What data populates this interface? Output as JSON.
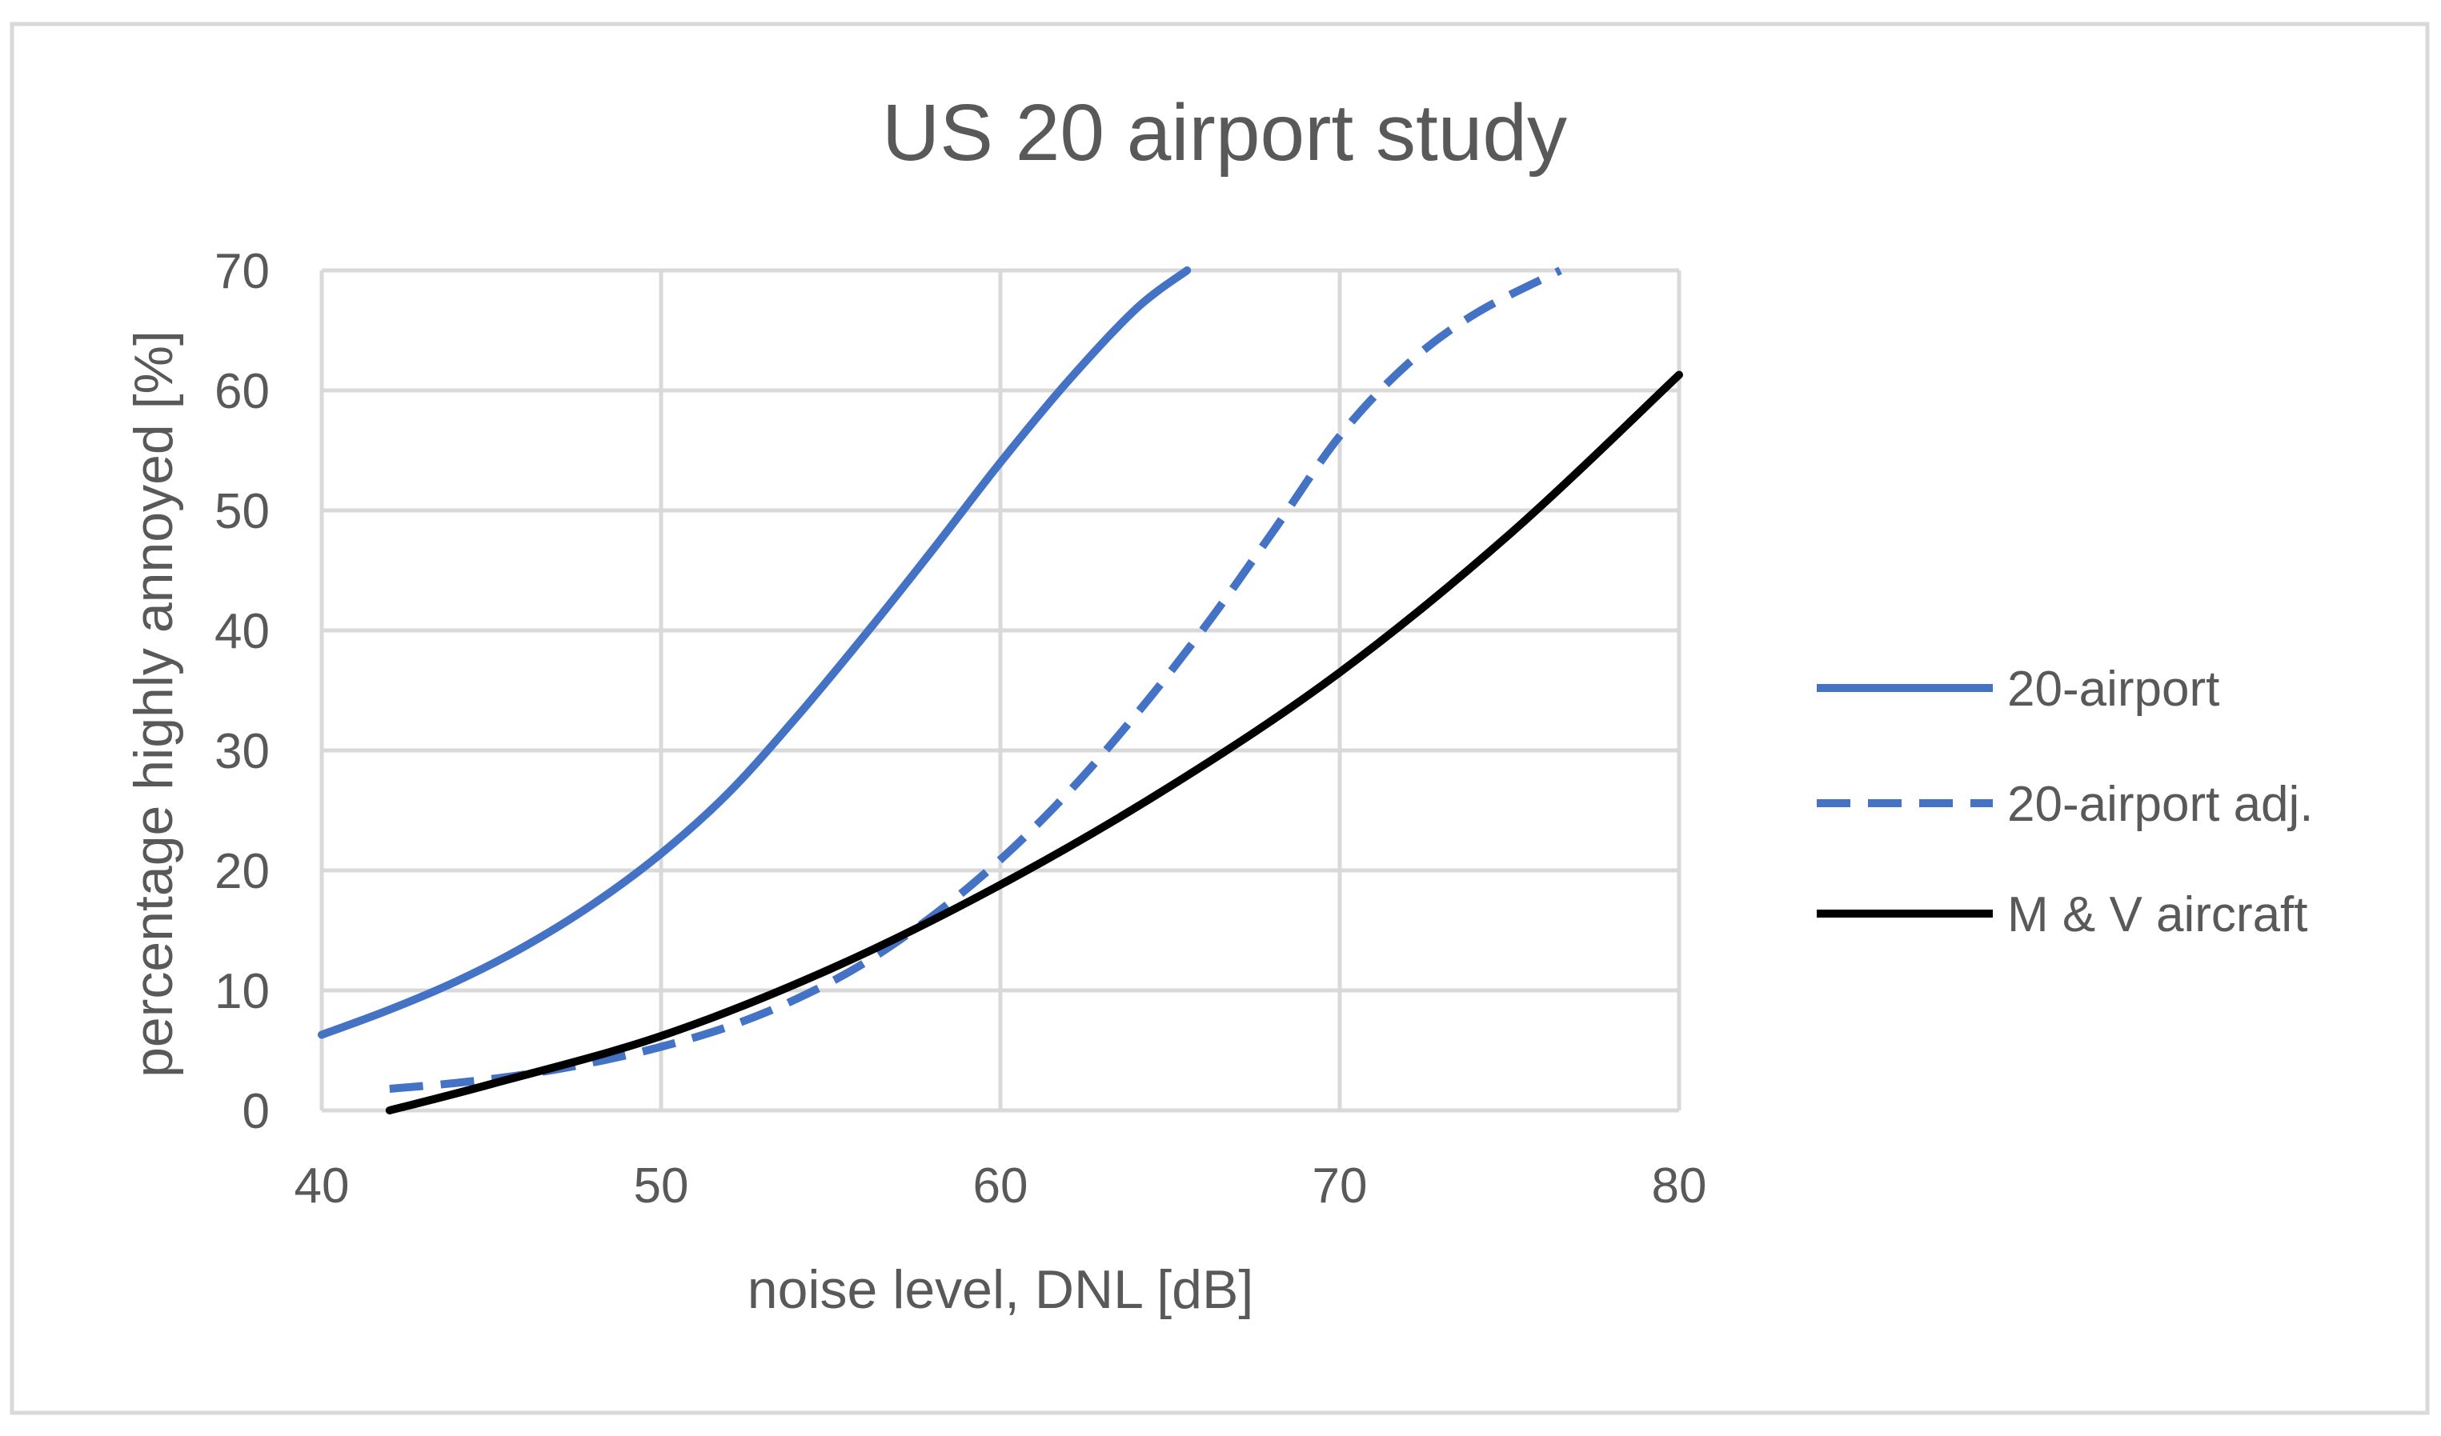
{
  "chart_data": {
    "type": "line",
    "title": "US 20 airport study",
    "xlabel": "noise level, DNL [dB]",
    "ylabel": "percentage highly annoyed [%]",
    "xlim": [
      40,
      80
    ],
    "ylim": [
      0,
      70
    ],
    "xticks": [
      40,
      50,
      60,
      70,
      80
    ],
    "yticks": [
      0,
      10,
      20,
      30,
      40,
      50,
      60,
      70
    ],
    "x_tick_labels": [
      "40",
      "50",
      "60",
      "70",
      "80"
    ],
    "y_tick_labels": [
      "0",
      "10",
      "20",
      "30",
      "40",
      "50",
      "60",
      "70"
    ],
    "grid": true,
    "legend_position": "right",
    "series": [
      {
        "name": "20-airport",
        "color": "#4472C4",
        "dash": "solid",
        "x": [
          40,
          42,
          44,
          46,
          48,
          50,
          52,
          54,
          56,
          58,
          60,
          62,
          64,
          65.5
        ],
        "y": [
          6.3,
          8.4,
          10.8,
          13.7,
          17.2,
          21.4,
          26.5,
          32.8,
          39.6,
          46.7,
          54.0,
          60.8,
          66.8,
          70.0
        ]
      },
      {
        "name": "20-airport adj.",
        "color": "#4472C4",
        "dash": "dashed",
        "x": [
          42,
          44,
          46,
          48,
          50,
          52,
          54,
          56,
          58,
          60,
          62,
          64,
          66,
          68,
          70,
          72,
          74,
          76.5
        ],
        "y": [
          1.8,
          2.3,
          3.0,
          4.0,
          5.3,
          7.0,
          9.3,
          12.3,
          16.2,
          20.9,
          26.5,
          33.0,
          40.2,
          48.1,
          56.2,
          62.2,
          66.4,
          70.0
        ]
      },
      {
        "name": "M & V aircraft",
        "color": "#000000",
        "dash": "solid",
        "x": [
          42,
          45,
          50,
          55,
          60,
          65,
          70,
          75,
          80
        ],
        "y": [
          0,
          2.2,
          6.2,
          11.8,
          18.8,
          27.0,
          36.5,
          48.0,
          61.3
        ]
      }
    ]
  }
}
